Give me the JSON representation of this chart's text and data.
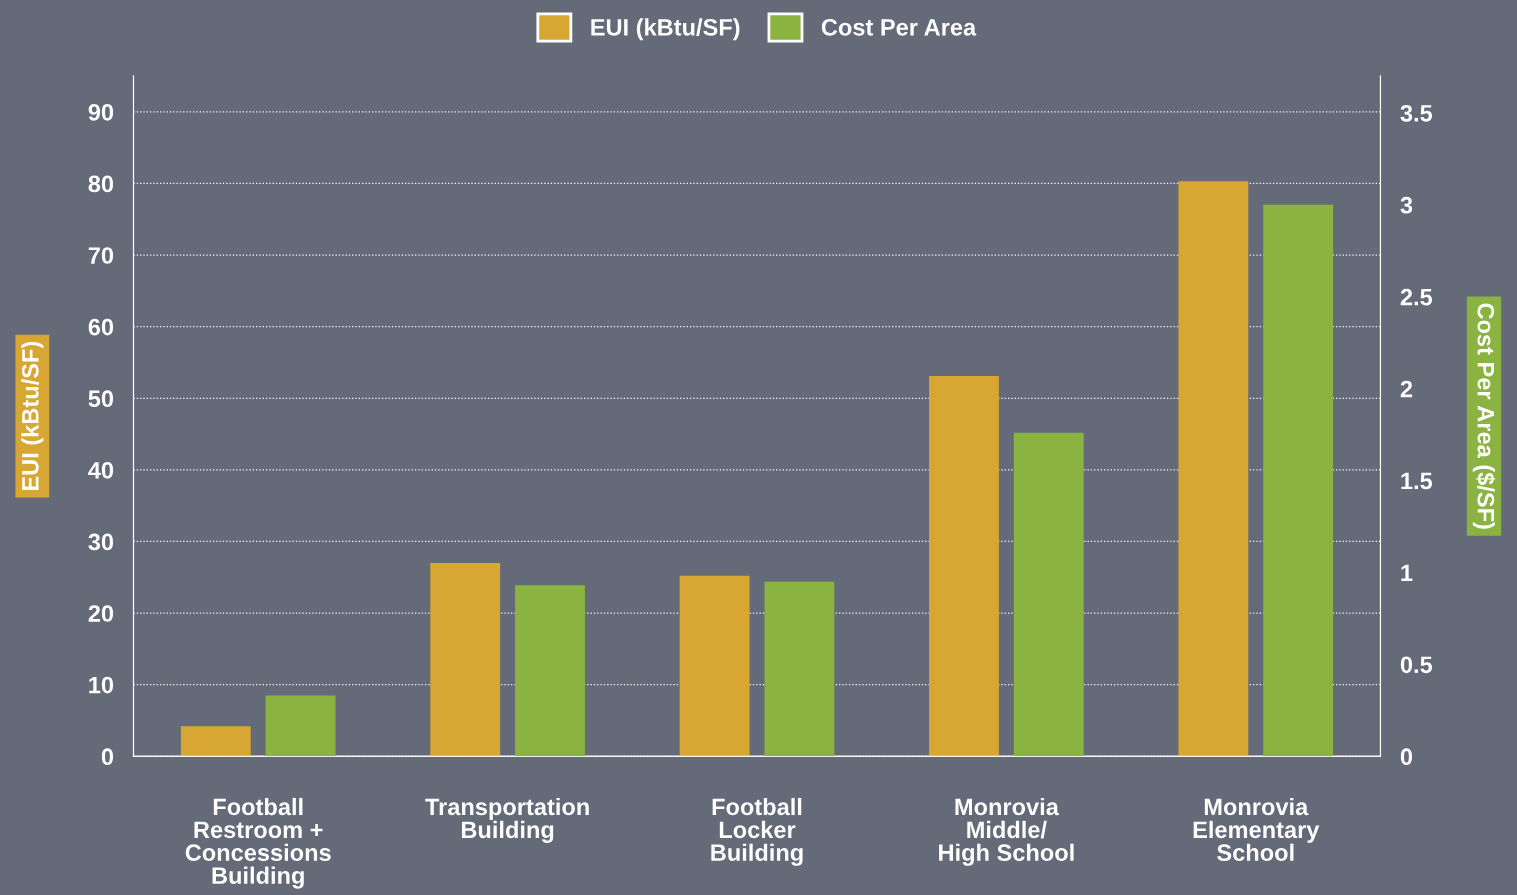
{
  "chart_data": {
    "type": "bar",
    "categories": [
      "Football\nRestroom +\nConcessions\nBuilding",
      "Transportation\nBuilding",
      "Football\nLocker\nBuilding",
      "Monrovia\nMiddle/\nHigh School",
      "Monrovia\nElementary\nSchool"
    ],
    "series": [
      {
        "name": "EUI (kBtu/SF)",
        "color": "#d8a633",
        "values": [
          4.2,
          27.0,
          25.2,
          53.1,
          80.3
        ]
      },
      {
        "name": "Cost Per Area",
        "color": "#8ab342",
        "axis": "y2",
        "values": [
          0.33,
          0.93,
          0.95,
          1.76,
          3.0
        ]
      }
    ],
    "ylabel": "EUI (kBtu/SF)",
    "y2label": "Cost Per Area ($/SF)",
    "ylim": [
      0,
      95
    ],
    "yticks": [
      0,
      10,
      20,
      30,
      40,
      50,
      60,
      70,
      80,
      90
    ],
    "y2lim": [
      0,
      3.7
    ],
    "y2ticks": [
      0,
      {
        "value": 0.5,
        "label": "0.5"
      },
      1,
      {
        "value": 1.5,
        "label": "1.5"
      },
      2,
      {
        "value": 2.5,
        "label": "2.5"
      },
      3,
      {
        "value": 3.5,
        "label": "3.5"
      }
    ],
    "grid": "y",
    "legend": "top"
  }
}
